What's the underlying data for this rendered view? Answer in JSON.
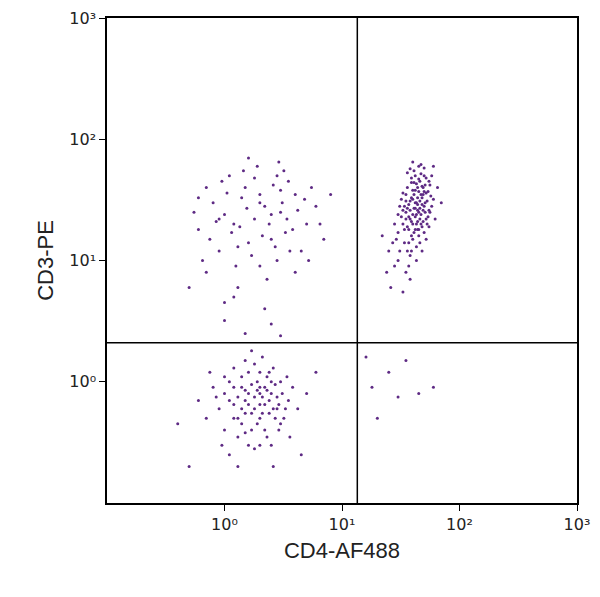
{
  "chart_data": {
    "type": "scatter",
    "xlabel": "CD4-AF488",
    "ylabel": "CD3-PE",
    "log": true,
    "grid": false,
    "color": "#5e2a84",
    "xlim": [
      0.1,
      1000
    ],
    "ylim": [
      0.1,
      1000
    ],
    "xticks": [
      {
        "value": 1,
        "label": "10⁰"
      },
      {
        "value": 10,
        "label": "10¹"
      },
      {
        "value": 100,
        "label": "10²"
      },
      {
        "value": 1000,
        "label": "10³"
      }
    ],
    "yticks": [
      {
        "value": 1,
        "label": "10⁰"
      },
      {
        "value": 10,
        "label": "10¹"
      },
      {
        "value": 100,
        "label": "10²"
      },
      {
        "value": 1000,
        "label": "10³"
      }
    ],
    "quadrant_x": 13.5,
    "quadrant_y": 2.1,
    "x": [
      38,
      42,
      45,
      35,
      50,
      40,
      33,
      47,
      52,
      44,
      36,
      41,
      48,
      39,
      55,
      30,
      43,
      46,
      37,
      53,
      34,
      49,
      40,
      45,
      32,
      51,
      38,
      44,
      57,
      36,
      42,
      47,
      31,
      50,
      39,
      54,
      35,
      43,
      48,
      41,
      29,
      46,
      52,
      37,
      44,
      40,
      56,
      33,
      49,
      38,
      45,
      42,
      35,
      51,
      47,
      39,
      30,
      53,
      43,
      36,
      48,
      41,
      55,
      34,
      44,
      50,
      38,
      46,
      32,
      58,
      40,
      45,
      37,
      42,
      49,
      28,
      52,
      35,
      47,
      43,
      39,
      54,
      41,
      36,
      48,
      44,
      31,
      50,
      38,
      46,
      40,
      60,
      33,
      45,
      42,
      37,
      51,
      27,
      48,
      39,
      55,
      43,
      36,
      47,
      41,
      34,
      52,
      45,
      40,
      38,
      49,
      30,
      44,
      56,
      35,
      42,
      62,
      25,
      46,
      39,
      43,
      50,
      37,
      58,
      24,
      26,
      33,
      28,
      65,
      70,
      22,
      60,
      1.2,
      2.0,
      0.9,
      3.0,
      1.5,
      2.5,
      0.7,
      4.0,
      1.8,
      1.1,
      2.8,
      0.6,
      3.5,
      1.3,
      2.2,
      5.0,
      0.8,
      1.6,
      3.2,
      2.0,
      1.0,
      4.5,
      1.4,
      2.6,
      0.75,
      6.0,
      1.9,
      3.8,
      1.2,
      2.4,
      0.55,
      1.7,
      3.0,
      0.95,
      2.1,
      4.2,
      1.35,
      2.9,
      0.65,
      5.5,
      1.55,
      2.3,
      3.4,
      1.05,
      2.7,
      0.85,
      7.0,
      1.8,
      4.8,
      1.25,
      2.0,
      3.6,
      0.5,
      1.45,
      2.5,
      6.5,
      1.15,
      3.1,
      0.7,
      2.2,
      8.0,
      1.6,
      4.0,
      0.9,
      2.8,
      1.3,
      3.3,
      1.0,
      5.2,
      0.6,
      1.5,
      2.0,
      1.2,
      2.5,
      1.8,
      3.0,
      1.0,
      2.2,
      1.6,
      2.8,
      1.3,
      2.1,
      0.9,
      3.5,
      1.7,
      2.4,
      1.1,
      2.6,
      1.4,
      1.9,
      3.2,
      0.8,
      2.3,
      1.6,
      2.7,
      1.2,
      2.0,
      1.5,
      3.8,
      1.0,
      2.2,
      1.8,
      2.9,
      1.3,
      2.5,
      0.7,
      1.7,
      2.0,
      3.1,
      1.4,
      2.4,
      1.1,
      1.9,
      2.6,
      1.5,
      2.1,
      0.85,
      3.4,
      1.6,
      2.3,
      1.2,
      2.8,
      1.8,
      2.0,
      1.4,
      4.2,
      1.0,
      2.5,
      1.7,
      3.0,
      1.3,
      2.2,
      0.6,
      1.9,
      2.7,
      1.5,
      2.4,
      1.1,
      3.6,
      1.6,
      2.0,
      0.75,
      2.9,
      1.4,
      2.1,
      1.8,
      5.0,
      1.2,
      2.6,
      1.7,
      0.95,
      3.3,
      2.3,
      1.5,
      2.0,
      1.3,
      0.4,
      0.5,
      6,
      4.5,
      16,
      18,
      25,
      30,
      45,
      20,
      60,
      35,
      1.5,
      2.5,
      3,
      1.0
    ],
    "values": [
      22,
      30,
      18,
      25,
      28,
      15,
      20,
      35,
      22,
      40,
      12,
      27,
      19,
      33,
      26,
      17,
      24,
      45,
      29,
      31,
      14,
      21,
      38,
      16,
      23,
      42,
      11,
      26,
      34,
      19,
      50,
      24,
      28,
      17,
      21,
      37,
      31,
      13,
      29,
      55,
      15,
      22,
      48,
      9,
      33,
      20,
      25,
      36,
      40,
      26,
      60,
      18,
      8,
      30,
      52,
      16,
      24,
      20,
      43,
      27,
      12,
      35,
      45,
      18,
      21,
      58,
      31,
      14,
      32,
      28,
      24,
      47,
      14,
      38,
      26,
      20,
      36,
      22,
      62,
      10,
      44,
      23,
      17,
      40,
      33,
      29,
      12,
      50,
      7,
      27,
      65,
      32,
      26,
      37,
      23,
      18,
      25,
      14,
      41,
      12,
      19,
      30,
      53,
      20,
      44,
      28,
      15,
      25,
      32,
      57,
      35,
      10,
      18,
      42,
      35,
      27,
      22,
      12,
      31,
      48,
      20,
      37,
      23,
      50,
      8,
      6,
      5.5,
      9,
      40,
      30,
      16,
      60,
      20,
      30,
      12,
      25,
      40,
      15,
      8,
      35,
      22,
      50,
      10,
      18,
      45,
      6,
      28,
      20,
      30,
      14,
      55,
      9,
      24,
      12,
      33,
      42,
      15,
      28,
      60,
      18,
      5,
      20,
      25,
      11,
      38,
      45,
      16,
      26,
      19,
      65,
      10,
      40,
      27,
      7,
      22,
      36,
      13,
      21,
      15,
      48,
      32,
      9,
      35,
      12,
      6,
      55,
      24,
      20,
      17,
      30,
      40,
      4,
      35,
      70,
      8,
      22,
      50,
      13,
      17,
      4.5,
      10,
      33,
      0.7,
      0.9,
      0.5,
      0.8,
      0.6,
      1.0,
      0.8,
      0.4,
      1.2,
      0.6,
      0.35,
      0.75,
      0.6,
      0.7,
      0.95,
      0.55,
      1.0,
      1.3,
      0.45,
      0.85,
      0.5,
      0.9,
      1.1,
      0.3,
      0.95,
      0.65,
      0.5,
      1.5,
      0.9,
      0.4,
      0.65,
      1.4,
      0.4,
      0.75,
      0.3,
      0.5,
      0.55,
      1.2,
      0.8,
      0.9,
      0.7,
      0.25,
      0.45,
      0.6,
      0.85,
      1.6,
      0.75,
      1.1,
      0.65,
      0.35,
      1.3,
      0.75,
      0.28,
      0.8,
      0.6,
      0.6,
      1.1,
      1.0,
      0.4,
      0.45,
      0.2,
      0.9,
      0.7,
      1.0,
      0.5,
      0.38,
      1.2,
      0.7,
      0.35,
      0.8,
      0.3,
      1.2,
      0.65,
      1.1,
      0.55,
      0.75,
      0.8,
      0.9,
      0.2,
      1.8,
      0.3,
      0.6,
      0.85,
      0.55,
      0.65,
      0.5,
      0.45,
      0.2,
      1.2,
      0.25,
      1.6,
      0.9,
      1.2,
      0.75,
      0.8,
      0.5,
      0.9,
      1.5,
      2.5,
      3,
      2.4,
      3.2
    ]
  }
}
